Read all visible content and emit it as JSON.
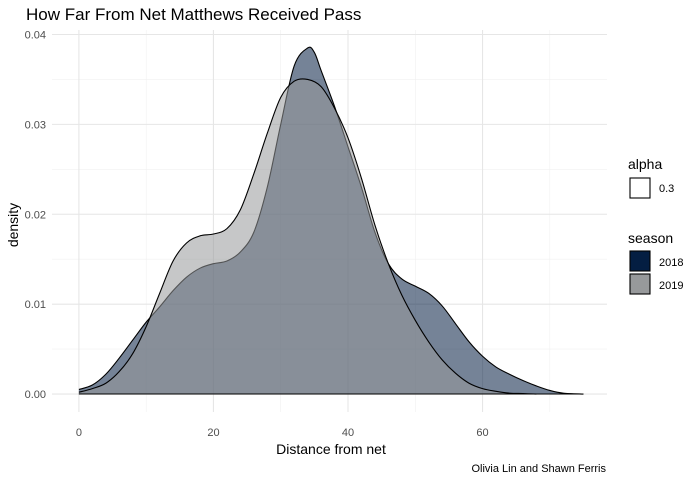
{
  "chart_data": {
    "type": "area",
    "title": "How Far From Net Matthews Received Pass",
    "xlabel": "Distance from net",
    "ylabel": "density",
    "caption": "Olivia Lin and Shawn Ferris",
    "xlim": [
      -4,
      78.5
    ],
    "ylim": [
      -0.002,
      0.0405
    ],
    "xticks": [
      0,
      20,
      40,
      60
    ],
    "yticks": [
      0.0,
      0.01,
      0.02,
      0.03,
      0.04
    ],
    "ytick_labels": [
      "0.00",
      "0.01",
      "0.02",
      "0.03",
      "0.04"
    ],
    "grid": true,
    "legend_position": "right",
    "legends": [
      {
        "title": "alpha",
        "items": [
          {
            "label": "0.3",
            "color": "#ffffff"
          }
        ]
      },
      {
        "title": "season",
        "items": [
          {
            "label": "2018",
            "color": "#041E42"
          },
          {
            "label": "2019",
            "color": "#97999B"
          }
        ]
      }
    ],
    "series": [
      {
        "name": "2018",
        "color": "#041E42",
        "x": [
          0,
          2,
          4,
          6,
          8,
          10,
          12,
          14,
          16,
          18,
          20,
          22,
          24,
          26,
          28,
          30,
          32,
          34,
          35,
          36,
          38,
          40,
          42,
          44,
          46,
          48,
          50,
          52,
          54,
          56,
          58,
          60,
          62,
          64,
          66,
          68,
          70,
          72,
          75
        ],
        "values": [
          0.0005,
          0.001,
          0.0022,
          0.004,
          0.006,
          0.008,
          0.0097,
          0.0115,
          0.013,
          0.014,
          0.0145,
          0.0148,
          0.0158,
          0.018,
          0.023,
          0.03,
          0.0365,
          0.0385,
          0.038,
          0.036,
          0.032,
          0.0275,
          0.023,
          0.018,
          0.0145,
          0.0128,
          0.012,
          0.0112,
          0.0098,
          0.0078,
          0.0058,
          0.0042,
          0.003,
          0.0022,
          0.0015,
          0.0009,
          0.0004,
          0.0001,
          0.0
        ]
      },
      {
        "name": "2019",
        "color": "#97999B",
        "x": [
          0,
          2,
          4,
          6,
          8,
          10,
          12,
          14,
          16,
          18,
          20,
          22,
          24,
          26,
          28,
          30,
          32,
          34,
          36,
          38,
          40,
          42,
          44,
          46,
          48,
          50,
          52,
          54,
          56,
          58,
          60,
          62,
          64,
          66,
          68
        ],
        "values": [
          0.0002,
          0.0006,
          0.0012,
          0.0025,
          0.0045,
          0.0075,
          0.0112,
          0.0148,
          0.0168,
          0.0176,
          0.0178,
          0.0184,
          0.0205,
          0.0245,
          0.029,
          0.033,
          0.0348,
          0.035,
          0.0342,
          0.0318,
          0.0285,
          0.024,
          0.0188,
          0.0145,
          0.011,
          0.0082,
          0.0058,
          0.0038,
          0.0023,
          0.0012,
          0.0006,
          0.0003,
          0.0001,
          5e-05,
          0.0
        ]
      }
    ]
  }
}
